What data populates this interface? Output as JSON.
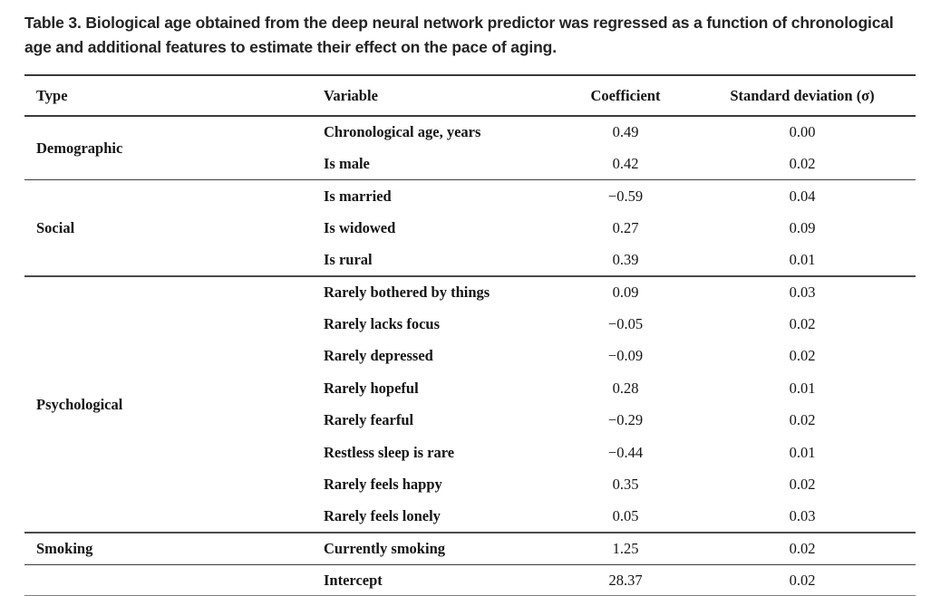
{
  "caption": "Table 3. Biological age obtained from the deep neural network predictor was regressed as a function of chronological age and additional features to estimate their effect on the pace of aging.",
  "table": {
    "columns": [
      "Type",
      "Variable",
      "Coefficient",
      "Standard deviation (σ)"
    ],
    "sections": [
      {
        "type": "Demographic",
        "rows": [
          [
            "Chronological age, years",
            "0.49",
            "0.00"
          ],
          [
            "Is male",
            "0.42",
            "0.02"
          ]
        ]
      },
      {
        "type": "Social",
        "rows": [
          [
            "Is married",
            "−0.59",
            "0.04"
          ],
          [
            "Is widowed",
            "0.27",
            "0.09"
          ],
          [
            "Is rural",
            "0.39",
            "0.01"
          ]
        ]
      },
      {
        "type": "Psychological",
        "rows": [
          [
            "Rarely bothered by things",
            "0.09",
            "0.03"
          ],
          [
            "Rarely lacks focus",
            "−0.05",
            "0.02"
          ],
          [
            "Rarely depressed",
            "−0.09",
            "0.02"
          ],
          [
            "Rarely hopeful",
            "0.28",
            "0.01"
          ],
          [
            "Rarely fearful",
            "−0.29",
            "0.02"
          ],
          [
            "Restless sleep is rare",
            "−0.44",
            "0.01"
          ],
          [
            "Rarely feels happy",
            "0.35",
            "0.02"
          ],
          [
            "Rarely feels lonely",
            "0.05",
            "0.03"
          ]
        ]
      },
      {
        "type": "Smoking",
        "rows": [
          [
            "Currently smoking",
            "1.25",
            "0.02"
          ]
        ]
      },
      {
        "type": "",
        "rows": [
          [
            "Intercept",
            "28.37",
            "0.02"
          ]
        ]
      }
    ]
  }
}
